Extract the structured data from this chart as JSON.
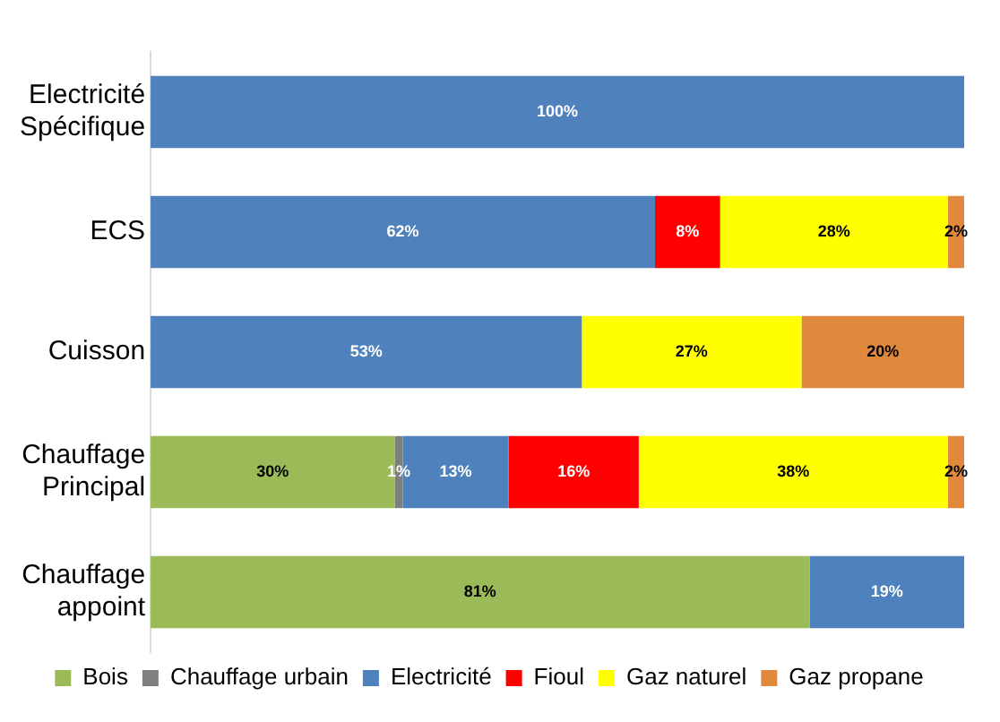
{
  "chart_data": {
    "type": "bar",
    "orientation": "horizontal",
    "stacked": true,
    "categories": [
      "Electricité Spécifique",
      "ECS",
      "Cuisson",
      "Chauffage Principal",
      "Chauffage appoint"
    ],
    "series": [
      {
        "name": "Bois",
        "color": "#9bbb59",
        "values": [
          null,
          null,
          null,
          30,
          81
        ],
        "value_labels": [
          null,
          null,
          null,
          "30%",
          "81%"
        ]
      },
      {
        "name": "Chauffage urbain",
        "color": "#7f7f7f",
        "values": [
          null,
          null,
          null,
          1,
          null
        ],
        "value_labels": [
          null,
          null,
          null,
          "1%",
          null
        ]
      },
      {
        "name": "Electricité",
        "color": "#4f81bd",
        "values": [
          100,
          62,
          53,
          13,
          19
        ],
        "value_labels": [
          "100%",
          "62%",
          "53%",
          "13%",
          "19%"
        ]
      },
      {
        "name": "Fioul",
        "color": "#ff0000",
        "values": [
          null,
          8,
          null,
          16,
          null
        ],
        "value_labels": [
          null,
          "8%",
          null,
          "16%",
          null
        ]
      },
      {
        "name": "Gaz naturel",
        "color": "#ffff00",
        "values": [
          null,
          28,
          27,
          38,
          null
        ],
        "value_labels": [
          null,
          "28%",
          "27%",
          "38%",
          null
        ]
      },
      {
        "name": "Gaz propane",
        "color": "#e0883c",
        "values": [
          null,
          2,
          20,
          2,
          null
        ],
        "value_labels": [
          null,
          "2%",
          "20%",
          "2%",
          null
        ]
      }
    ],
    "xlim": [
      0,
      100
    ],
    "tick_labels": "y",
    "grid": false,
    "legend": "bottom"
  }
}
